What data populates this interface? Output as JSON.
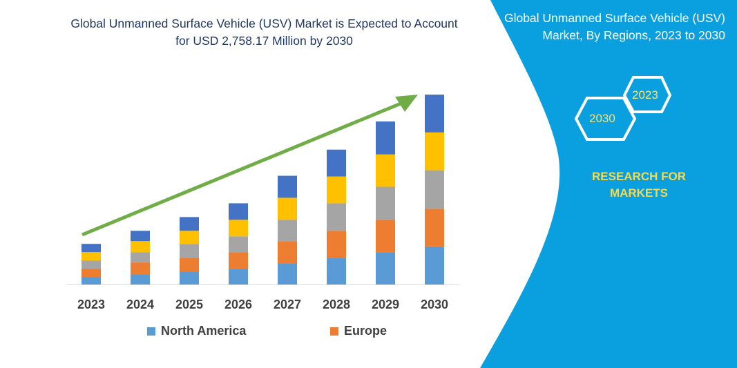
{
  "header": {
    "title": "Global Unmanned Surface Vehicle (USV) Market is Expected to Account for USD 2,758.17 Million by 2030"
  },
  "side_panel": {
    "title": "Global Unmanned Surface Vehicle (USV) Market, By Regions, 2023 to 2030",
    "hex_start": "2023",
    "hex_end": "2030",
    "brand": "RESEARCH FOR MARKETS",
    "background_color": "#0aa0e0"
  },
  "chart_data": {
    "type": "bar",
    "stacked": true,
    "title": "Global Unmanned Surface Vehicle (USV) Market is Expected to Account for USD 2,758.17 Million by 2030",
    "xlabel": "",
    "ylabel": "",
    "y_axis_visible": false,
    "grid": false,
    "legend_position": "bottom",
    "categories": [
      "2023",
      "2024",
      "2025",
      "2026",
      "2027",
      "2028",
      "2029",
      "2030"
    ],
    "ylim": [
      0,
      2800
    ],
    "series": [
      {
        "name": "North America",
        "color": "#5b9bd5",
        "values": [
          110,
          150,
          190,
          230,
          310,
          390,
          470,
          550
        ]
      },
      {
        "name": "Europe",
        "color": "#ed7d31",
        "values": [
          120,
          170,
          200,
          240,
          320,
          390,
          470,
          550
        ]
      },
      {
        "color": "#a5a5a5",
        "values": [
          120,
          150,
          200,
          230,
          310,
          400,
          480,
          560
        ]
      },
      {
        "color": "#ffc000",
        "values": [
          120,
          160,
          190,
          240,
          320,
          390,
          470,
          550
        ]
      },
      {
        "color": "#4472c4",
        "values": [
          120,
          150,
          200,
          240,
          320,
          390,
          480,
          550
        ]
      }
    ],
    "trend_arrow_color": "#70ad47"
  }
}
